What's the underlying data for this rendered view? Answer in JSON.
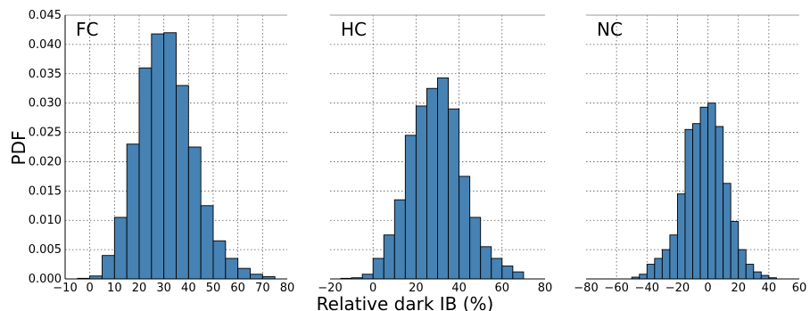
{
  "chart_data": {
    "type": "bar",
    "ylabel": "PDF",
    "xlabel": "Relative dark IB (%)",
    "ylim": [
      0,
      0.045
    ],
    "yticks": [
      "0.000",
      "0.005",
      "0.010",
      "0.015",
      "0.020",
      "0.025",
      "0.030",
      "0.035",
      "0.040",
      "0.045"
    ],
    "grid": "dotted",
    "bar_color": "#4682b4",
    "edge_color": "#000000",
    "panels": [
      {
        "title": "FC",
        "xlim": [
          -10,
          80
        ],
        "xticks": [
          -10,
          0,
          10,
          20,
          30,
          40,
          50,
          60,
          70,
          80
        ],
        "xtick_labels": [
          "−10",
          "0",
          "10",
          "20",
          "30",
          "40",
          "50",
          "60",
          "70",
          "80"
        ],
        "bin_width": 5,
        "bin_starts": [
          -5,
          0,
          5,
          10,
          15,
          20,
          25,
          30,
          35,
          40,
          45,
          50,
          55,
          60,
          65,
          70
        ],
        "values": [
          0.0001,
          0.0005,
          0.004,
          0.0105,
          0.023,
          0.036,
          0.0418,
          0.042,
          0.033,
          0.0225,
          0.0125,
          0.0065,
          0.0035,
          0.0018,
          0.0008,
          0.0004
        ]
      },
      {
        "title": "HC",
        "xlim": [
          -20,
          80
        ],
        "xticks": [
          -20,
          0,
          20,
          40,
          60,
          80
        ],
        "xtick_labels": [
          "−20",
          "0",
          "20",
          "40",
          "60",
          "80"
        ],
        "bin_width": 5,
        "bin_starts": [
          -15,
          -10,
          -5,
          0,
          5,
          10,
          15,
          20,
          25,
          30,
          35,
          40,
          45,
          50,
          55,
          60,
          65
        ],
        "values": [
          0.0001,
          0.0002,
          0.0008,
          0.0035,
          0.0075,
          0.0135,
          0.0245,
          0.0295,
          0.0325,
          0.0343,
          0.029,
          0.0175,
          0.0105,
          0.0055,
          0.0035,
          0.0022,
          0.0012
        ]
      },
      {
        "title": "NC",
        "xlim": [
          -80,
          60
        ],
        "xticks": [
          -80,
          -60,
          -40,
          -20,
          0,
          20,
          40,
          60
        ],
        "xtick_labels": [
          "−80",
          "−60",
          "−40",
          "−20",
          "0",
          "20",
          "40",
          "60"
        ],
        "bin_width": 5,
        "bin_starts": [
          -50,
          -45,
          -40,
          -35,
          -30,
          -25,
          -20,
          -15,
          -10,
          -5,
          0,
          5,
          10,
          15,
          20,
          25,
          30,
          35,
          40
        ],
        "values": [
          0.0003,
          0.0008,
          0.0025,
          0.0035,
          0.005,
          0.0075,
          0.0145,
          0.0255,
          0.0265,
          0.0293,
          0.03,
          0.026,
          0.0163,
          0.0098,
          0.005,
          0.0025,
          0.0012,
          0.0006,
          0.0002
        ]
      }
    ]
  }
}
